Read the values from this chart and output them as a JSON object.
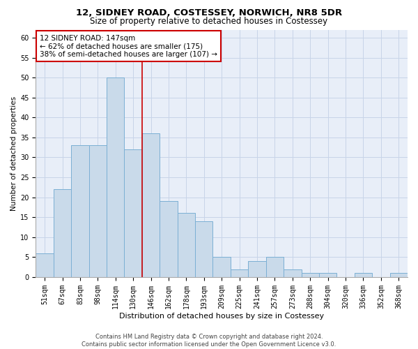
{
  "title": "12, SIDNEY ROAD, COSTESSEY, NORWICH, NR8 5DR",
  "subtitle": "Size of property relative to detached houses in Costessey",
  "xlabel": "Distribution of detached houses by size in Costessey",
  "ylabel": "Number of detached properties",
  "bar_labels": [
    "51sqm",
    "67sqm",
    "83sqm",
    "98sqm",
    "114sqm",
    "130sqm",
    "146sqm",
    "162sqm",
    "178sqm",
    "193sqm",
    "209sqm",
    "225sqm",
    "241sqm",
    "257sqm",
    "273sqm",
    "288sqm",
    "304sqm",
    "320sqm",
    "336sqm",
    "352sqm",
    "368sqm"
  ],
  "bar_values": [
    6,
    22,
    33,
    33,
    50,
    32,
    36,
    19,
    16,
    14,
    5,
    2,
    4,
    5,
    2,
    1,
    1,
    0,
    1,
    0,
    1
  ],
  "bar_color": "#c9daea",
  "bar_edgecolor": "#7bafd4",
  "vline_x": 5.5,
  "vline_color": "#cc0000",
  "annotation_text": "12 SIDNEY ROAD: 147sqm\n← 62% of detached houses are smaller (175)\n38% of semi-detached houses are larger (107) →",
  "annotation_box_color": "#ffffff",
  "annotation_box_edgecolor": "#cc0000",
  "grid_color": "#c8d4e8",
  "bg_color": "#e8eef8",
  "ylim": [
    0,
    62
  ],
  "yticks": [
    0,
    5,
    10,
    15,
    20,
    25,
    30,
    35,
    40,
    45,
    50,
    55,
    60
  ],
  "footnote": "Contains HM Land Registry data © Crown copyright and database right 2024.\nContains public sector information licensed under the Open Government Licence v3.0.",
  "title_fontsize": 9.5,
  "subtitle_fontsize": 8.5,
  "xlabel_fontsize": 8,
  "ylabel_fontsize": 7.5,
  "tick_fontsize": 7,
  "annotation_fontsize": 7.5,
  "footnote_fontsize": 6
}
